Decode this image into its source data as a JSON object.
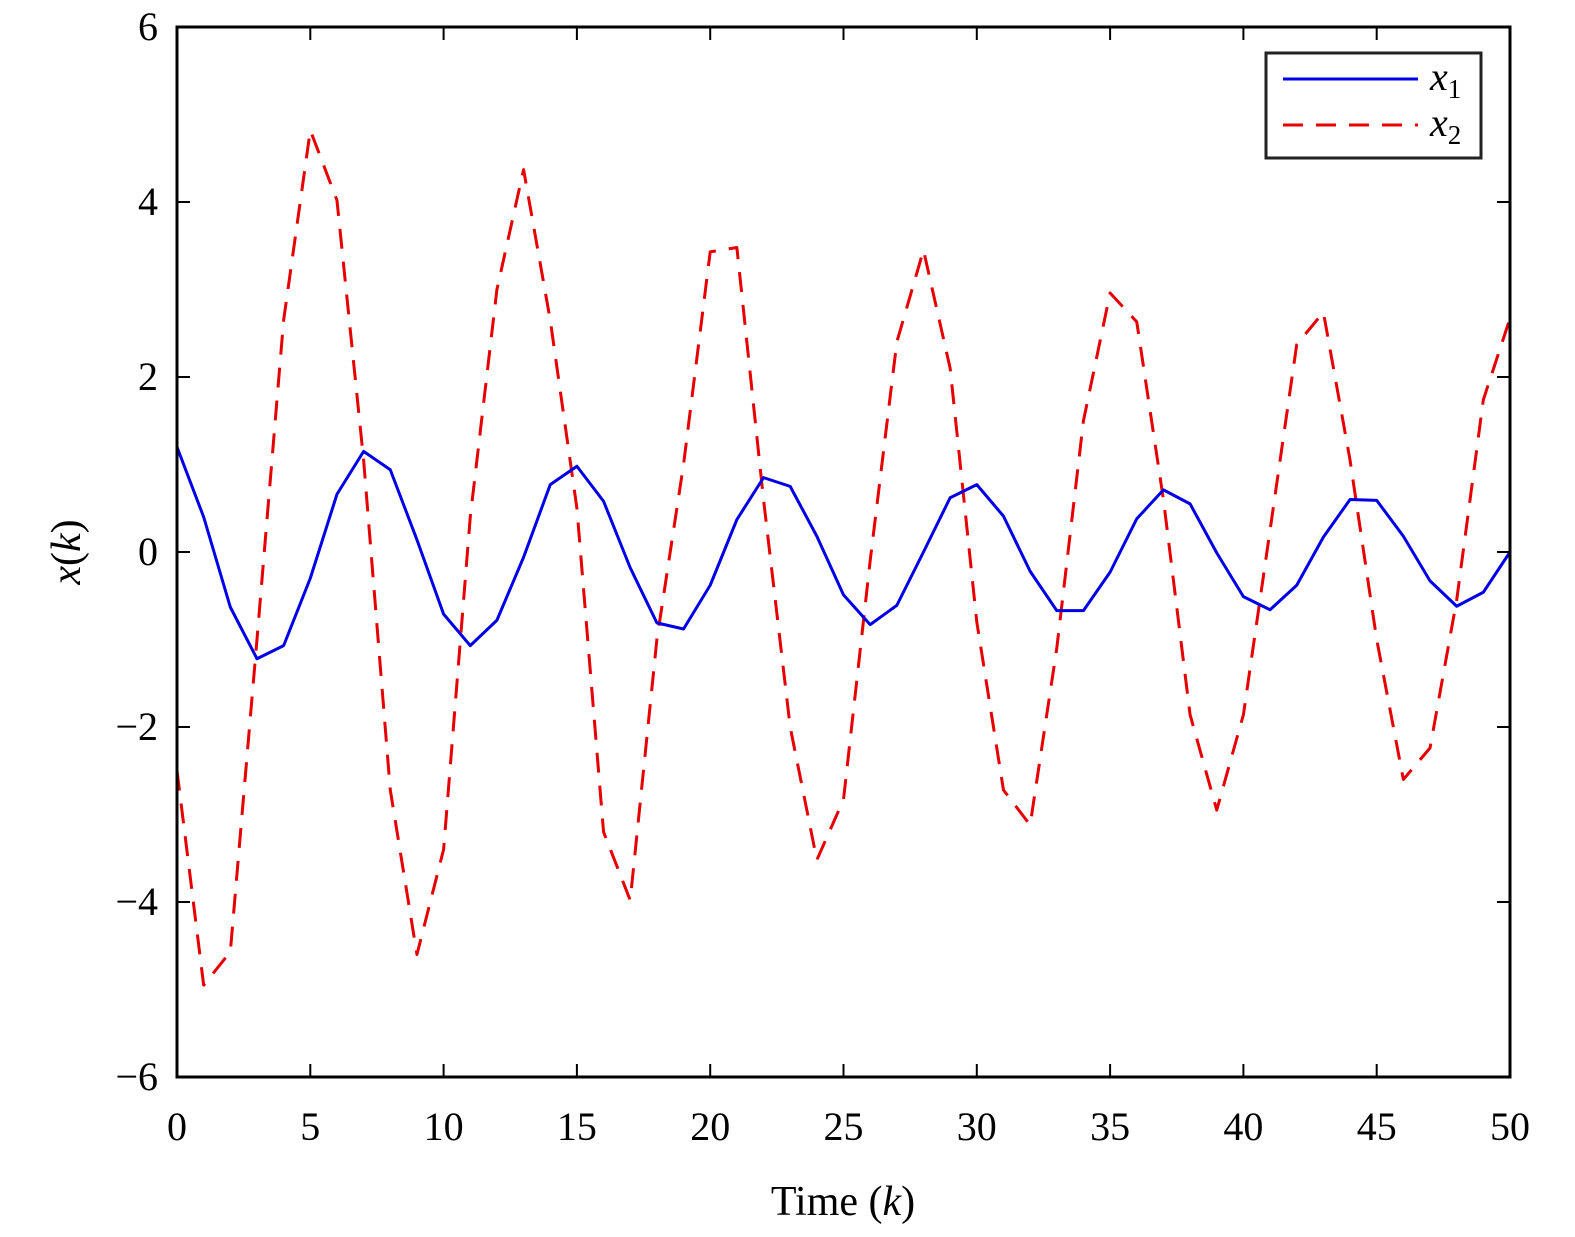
{
  "chart_data": {
    "type": "line",
    "title": "",
    "xlabel": "Time (k)",
    "xlabel_parts": {
      "prefix": "Time (",
      "var": "k",
      "suffix": ")"
    },
    "ylabel": "x(k)",
    "ylabel_parts": {
      "var": "x",
      "open": "(",
      "arg": "k",
      "close": ")"
    },
    "xlim": [
      0,
      50
    ],
    "ylim": [
      -6,
      6
    ],
    "xticks": [
      0,
      5,
      10,
      15,
      20,
      25,
      30,
      35,
      40,
      45,
      50
    ],
    "xtick_labels": [
      "0",
      "5",
      "10",
      "15",
      "20",
      "25",
      "30",
      "35",
      "40",
      "45",
      "50"
    ],
    "yticks": [
      -6,
      -4,
      -2,
      0,
      2,
      4,
      6
    ],
    "ytick_labels": [
      "−6",
      "−4",
      "−2",
      "0",
      "2",
      "4",
      "6"
    ],
    "grid": false,
    "legend_position": "top-right",
    "x": [
      0,
      1,
      2,
      3,
      4,
      5,
      6,
      7,
      8,
      9,
      10,
      11,
      12,
      13,
      14,
      15,
      16,
      17,
      18,
      19,
      20,
      21,
      22,
      23,
      24,
      25,
      26,
      27,
      28,
      29,
      30,
      31,
      32,
      33,
      34,
      35,
      36,
      37,
      38,
      39,
      40,
      41,
      42,
      43,
      44,
      45,
      46,
      47,
      48,
      49,
      50
    ],
    "series": [
      {
        "name": "x1",
        "label_base": "x",
        "label_sub": "1",
        "color": "#0000e6",
        "style": "solid",
        "values": [
          1.2,
          0.4,
          -0.63,
          -1.22,
          -1.07,
          -0.3,
          0.66,
          1.15,
          0.94,
          0.14,
          -0.71,
          -1.07,
          -0.78,
          -0.06,
          0.77,
          0.98,
          0.58,
          -0.18,
          -0.81,
          -0.88,
          -0.38,
          0.37,
          0.85,
          0.75,
          0.18,
          -0.49,
          -0.83,
          -0.61,
          0.0,
          0.62,
          0.77,
          0.41,
          -0.22,
          -0.67,
          -0.67,
          -0.23,
          0.38,
          0.71,
          0.55,
          -0.01,
          -0.51,
          -0.66,
          -0.38,
          0.17,
          0.6,
          0.59,
          0.18,
          -0.33,
          -0.62,
          -0.46,
          0.0
        ]
      },
      {
        "name": "x2",
        "label_base": "x",
        "label_sub": "2",
        "color": "#e60000",
        "style": "dashed",
        "values": [
          -2.5,
          -4.95,
          -4.57,
          -1.0,
          2.65,
          4.82,
          4.02,
          1.05,
          -2.72,
          -4.6,
          -3.4,
          0.4,
          3.0,
          4.37,
          2.65,
          0.5,
          -3.2,
          -3.98,
          -1.0,
          1.0,
          3.43,
          3.48,
          0.6,
          -2.0,
          -3.52,
          -2.83,
          -0.1,
          2.4,
          3.45,
          2.1,
          -0.8,
          -2.72,
          -3.12,
          -1.1,
          1.5,
          2.96,
          2.63,
          0.6,
          -1.86,
          -2.95,
          -1.86,
          0.25,
          2.37,
          2.74,
          1.05,
          -1.0,
          -2.6,
          -2.24,
          -0.55,
          1.74,
          2.67
        ]
      }
    ]
  }
}
